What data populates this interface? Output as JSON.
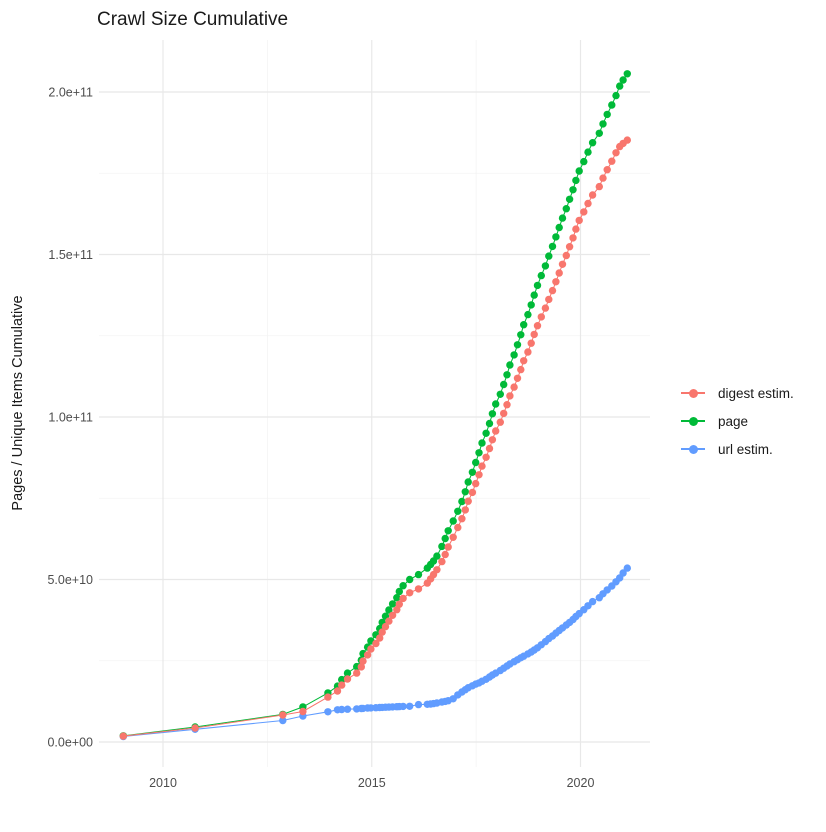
{
  "chart_data": {
    "type": "line",
    "title": "Crawl Size Cumulative",
    "ylabel": "Pages / Unique Items Cumulative",
    "xlabel": "",
    "value_unit": "counts (values stored in billions, i.e. 1e9 items)",
    "grid": true,
    "legend_position": "right",
    "xlim": [
      2008.4,
      2021.7
    ],
    "ylim_e9": [
      -8,
      216
    ],
    "x_ticks": [
      {
        "v": 2010,
        "label": "2010"
      },
      {
        "v": 2015,
        "label": "2015"
      },
      {
        "v": 2020,
        "label": "2020"
      }
    ],
    "x_minor": [
      2012.5,
      2017.5
    ],
    "y_ticks": [
      {
        "v": 0,
        "label": "0.0e+00"
      },
      {
        "v": 50,
        "label": "5.0e+10"
      },
      {
        "v": 100,
        "label": "1.0e+11"
      },
      {
        "v": 150,
        "label": "1.5e+11"
      },
      {
        "v": 200,
        "label": "2.0e+11"
      }
    ],
    "y_minor_e9": [
      25,
      75,
      125,
      175
    ],
    "x_years": [
      2009.05,
      2010.77,
      2012.87,
      2013.35,
      2013.95,
      2014.18,
      2014.28,
      2014.42,
      2014.64,
      2014.75,
      2014.79,
      2014.9,
      2014.98,
      2015.1,
      2015.19,
      2015.25,
      2015.33,
      2015.41,
      2015.5,
      2015.6,
      2015.66,
      2015.75,
      2015.91,
      2016.12,
      2016.33,
      2016.41,
      2016.48,
      2016.56,
      2016.68,
      2016.76,
      2016.83,
      2016.95,
      2017.06,
      2017.16,
      2017.24,
      2017.31,
      2017.41,
      2017.49,
      2017.57,
      2017.64,
      2017.74,
      2017.82,
      2017.89,
      2017.97,
      2018.08,
      2018.16,
      2018.24,
      2018.31,
      2018.41,
      2018.49,
      2018.57,
      2018.64,
      2018.74,
      2018.82,
      2018.89,
      2018.97,
      2019.06,
      2019.16,
      2019.24,
      2019.33,
      2019.41,
      2019.49,
      2019.57,
      2019.66,
      2019.74,
      2019.82,
      2019.89,
      2019.97,
      2020.08,
      2020.18,
      2020.29,
      2020.45,
      2020.54,
      2020.64,
      2020.75,
      2020.85,
      2020.94,
      2021.02,
      2021.12
    ],
    "series": [
      {
        "name": "digest estim.",
        "color": "#F8766D",
        "values_e9": [
          1.8,
          4.3,
          8.3,
          9.4,
          13.8,
          15.7,
          17.5,
          19.4,
          21.2,
          23.1,
          24.9,
          26.8,
          28.6,
          30.3,
          32.0,
          33.8,
          35.5,
          37.2,
          39.0,
          40.7,
          42.4,
          44.2,
          45.9,
          47.1,
          48.9,
          50.2,
          51.5,
          53.0,
          55.5,
          57.7,
          60.0,
          63.0,
          66.0,
          68.7,
          71.4,
          74.1,
          76.8,
          79.5,
          82.2,
          84.9,
          87.6,
          90.3,
          93.0,
          95.7,
          98.4,
          101.1,
          103.8,
          106.5,
          109.2,
          111.9,
          114.6,
          117.3,
          120.0,
          122.7,
          125.4,
          128.1,
          130.8,
          133.5,
          136.2,
          138.9,
          141.6,
          144.3,
          147.0,
          149.7,
          152.4,
          155.1,
          157.8,
          160.5,
          163.1,
          165.7,
          168.3,
          170.9,
          173.5,
          176.1,
          178.7,
          181.3,
          183.2,
          184.2,
          185.2
        ]
      },
      {
        "name": "page",
        "color": "#00BA38",
        "values_e9": [
          1.9,
          4.6,
          8.5,
          10.8,
          15.1,
          17.2,
          19.2,
          21.2,
          23.2,
          25.2,
          27.2,
          29.2,
          31.1,
          33.0,
          34.9,
          36.8,
          38.7,
          40.6,
          42.5,
          44.4,
          46.3,
          48.1,
          50.0,
          51.5,
          53.5,
          54.6,
          55.7,
          57.2,
          60.2,
          62.6,
          65.0,
          68.0,
          71.0,
          74.0,
          77.0,
          80.0,
          83.0,
          86.0,
          89.0,
          92.0,
          95.0,
          98.0,
          101.0,
          104.0,
          107.0,
          110.0,
          113.0,
          116.0,
          119.1,
          122.2,
          125.3,
          128.4,
          131.5,
          134.5,
          137.5,
          140.5,
          143.5,
          146.5,
          149.5,
          152.5,
          155.4,
          158.3,
          161.2,
          164.1,
          167.0,
          169.9,
          172.8,
          175.7,
          178.6,
          181.5,
          184.4,
          187.3,
          190.2,
          193.1,
          196.0,
          198.9,
          201.8,
          203.7,
          205.6
        ]
      },
      {
        "name": "url estim.",
        "color": "#619CFF",
        "values_e9": [
          1.7,
          3.9,
          6.6,
          8.0,
          9.3,
          9.9,
          10.0,
          10.1,
          10.2,
          10.3,
          10.35,
          10.45,
          10.5,
          10.55,
          10.6,
          10.65,
          10.7,
          10.75,
          10.8,
          10.85,
          10.9,
          10.95,
          11.0,
          11.5,
          11.6,
          11.7,
          11.8,
          12.0,
          12.3,
          12.5,
          12.7,
          13.3,
          14.5,
          15.4,
          16.1,
          16.7,
          17.3,
          17.8,
          18.2,
          18.7,
          19.3,
          20.0,
          20.6,
          21.2,
          22.0,
          22.7,
          23.4,
          24.0,
          24.7,
          25.3,
          25.9,
          26.4,
          27.1,
          27.7,
          28.3,
          29.0,
          29.9,
          30.9,
          31.8,
          32.6,
          33.5,
          34.3,
          35.1,
          36.0,
          36.8,
          37.7,
          38.6,
          39.5,
          40.7,
          41.9,
          43.2,
          44.4,
          45.6,
          46.8,
          48.0,
          49.3,
          50.5,
          52.0,
          53.5
        ]
      }
    ],
    "colors": {
      "grid_major": "#E8E8E8",
      "grid_minor": "#F3F3F3",
      "tick_label": "#4d4d4d",
      "text": "#1a1a1a",
      "background": "#ffffff"
    }
  }
}
